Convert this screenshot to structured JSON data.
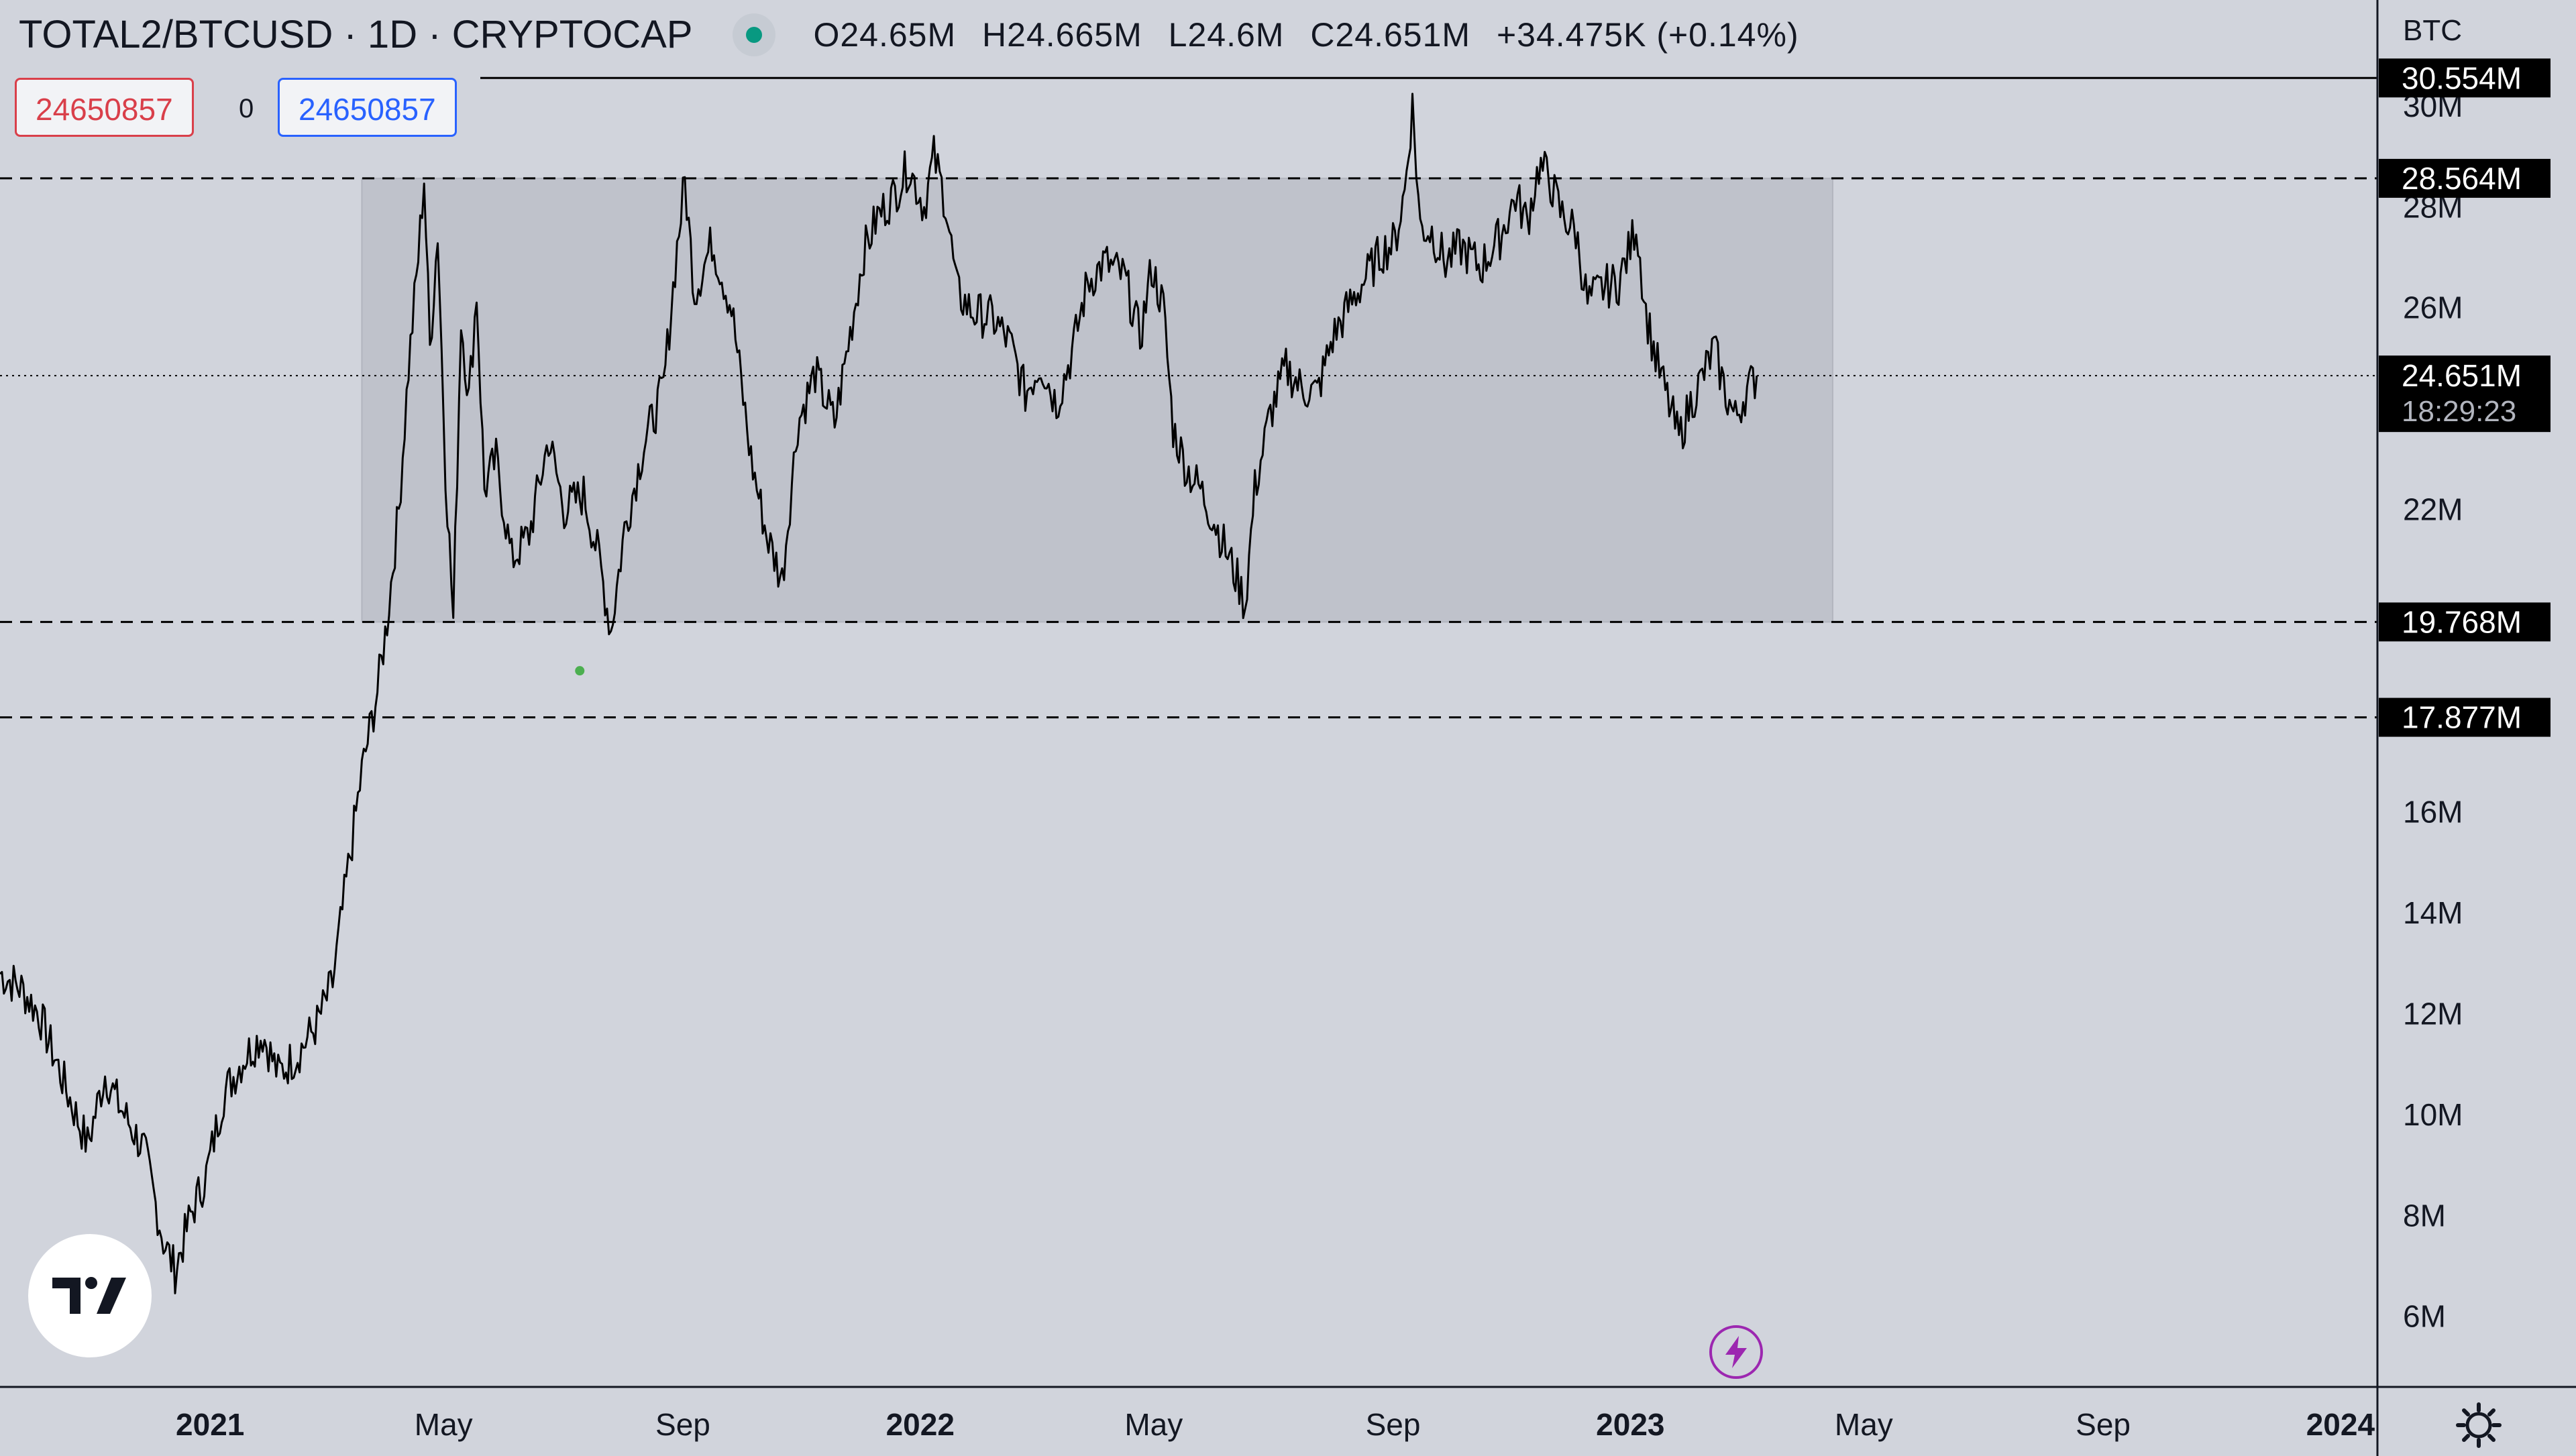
{
  "header": {
    "symbol": "TOTAL2/BTCUSD · 1D · CRYPTOCAP",
    "open": "O24.65M",
    "high": "H24.665M",
    "low": "L24.6M",
    "close": "C24.651M",
    "change": "+34.475K (+0.14%)"
  },
  "quote": {
    "sell": "24650857",
    "spread": "0",
    "buy": "24650857"
  },
  "colors": {
    "background": "#d1d4dc",
    "range_box": "#bfc2cb",
    "price_line": "#000000",
    "sell": "#d93f4a",
    "buy": "#2962ff",
    "status_dot": "#089981",
    "bolt": "#9c27b0"
  },
  "price_axis": {
    "currency": "BTC",
    "ticks": [
      "30M",
      "28M",
      "26M",
      "22M",
      "16M",
      "14M",
      "12M",
      "10M",
      "8M",
      "6M"
    ]
  },
  "price_labels": {
    "high_level": "30.554M",
    "resistance": "28.564M",
    "last_price": "24.651M",
    "countdown": "18:29:23",
    "support": "19.768M",
    "lower_support": "17.877M"
  },
  "chart_data": {
    "type": "line",
    "title": "TOTAL2/BTCUSD · 1D · CRYPTOCAP",
    "ylabel": "BTC",
    "ylim": [
      4.6,
      32.1
    ],
    "xlim": [
      "2020-09-15",
      "2024-01-20"
    ],
    "x_ticks": [
      {
        "label": "2021",
        "date": "2021-01-01",
        "bold": true
      },
      {
        "label": "May",
        "date": "2021-05-01"
      },
      {
        "label": "Sep",
        "date": "2021-09-01"
      },
      {
        "label": "2022",
        "date": "2022-01-01",
        "bold": true
      },
      {
        "label": "May",
        "date": "2022-05-01"
      },
      {
        "label": "Sep",
        "date": "2022-09-01"
      },
      {
        "label": "2023",
        "date": "2023-01-01",
        "bold": true
      },
      {
        "label": "May",
        "date": "2023-05-01"
      },
      {
        "label": "Sep",
        "date": "2023-09-01"
      },
      {
        "label": "2024",
        "date": "2024-01-01",
        "bold": true
      }
    ],
    "y_ticks": [
      30,
      28,
      26,
      22,
      16,
      14,
      12,
      10,
      8,
      6
    ],
    "horizontal_levels": [
      {
        "value": 30.554,
        "style": "solid"
      },
      {
        "value": 28.564,
        "style": "dashed"
      },
      {
        "value": 19.768,
        "style": "dashed"
      },
      {
        "value": 17.877,
        "style": "dashed"
      },
      {
        "value": 24.651,
        "style": "dotted"
      }
    ],
    "range_box": {
      "start": "2021-03-20",
      "end": "2023-04-15",
      "top": 28.564,
      "bottom": 19.768
    },
    "marker": {
      "date": "2021-07-10",
      "value": 18.8
    },
    "series": [
      {
        "name": "TOTAL2/BTC close",
        "points": [
          [
            "2020-09-15",
            12.8
          ],
          [
            "2020-09-26",
            12.5
          ],
          [
            "2020-10-05",
            12.0
          ],
          [
            "2020-10-20",
            10.4
          ],
          [
            "2020-10-30",
            9.4
          ],
          [
            "2020-11-08",
            10.8
          ],
          [
            "2020-11-15",
            10.2
          ],
          [
            "2020-11-28",
            9.3
          ],
          [
            "2020-12-08",
            7.5
          ],
          [
            "2020-12-14",
            6.9
          ],
          [
            "2020-12-22",
            8.0
          ],
          [
            "2020-12-30",
            8.8
          ],
          [
            "2021-01-08",
            10.4
          ],
          [
            "2021-01-18",
            11.1
          ],
          [
            "2021-01-28",
            11.6
          ],
          [
            "2021-02-05",
            10.8
          ],
          [
            "2021-02-15",
            11.2
          ],
          [
            "2021-02-25",
            11.8
          ],
          [
            "2021-03-05",
            12.6
          ],
          [
            "2021-03-12",
            14.6
          ],
          [
            "2021-03-20",
            16.8
          ],
          [
            "2021-03-28",
            18.4
          ],
          [
            "2021-04-02",
            19.8
          ],
          [
            "2021-04-08",
            22.0
          ],
          [
            "2021-04-13",
            24.8
          ],
          [
            "2021-04-18",
            27.0
          ],
          [
            "2021-04-21",
            28.6
          ],
          [
            "2021-04-24",
            25.2
          ],
          [
            "2021-04-28",
            27.5
          ],
          [
            "2021-05-02",
            22.8
          ],
          [
            "2021-05-06",
            19.8
          ],
          [
            "2021-05-10",
            25.8
          ],
          [
            "2021-05-14",
            24.2
          ],
          [
            "2021-05-18",
            26.3
          ],
          [
            "2021-05-22",
            22.4
          ],
          [
            "2021-05-28",
            23.0
          ],
          [
            "2021-06-05",
            21.0
          ],
          [
            "2021-06-14",
            21.5
          ],
          [
            "2021-06-24",
            23.4
          ],
          [
            "2021-07-02",
            22.0
          ],
          [
            "2021-07-12",
            22.3
          ],
          [
            "2021-07-20",
            21.0
          ],
          [
            "2021-07-26",
            19.6
          ],
          [
            "2021-08-02",
            21.6
          ],
          [
            "2021-08-12",
            23.3
          ],
          [
            "2021-08-22",
            24.4
          ],
          [
            "2021-08-29",
            27.2
          ],
          [
            "2021-09-02",
            28.5
          ],
          [
            "2021-09-07",
            26.3
          ],
          [
            "2021-09-16",
            27.3
          ],
          [
            "2021-09-26",
            26.0
          ],
          [
            "2021-10-06",
            23.0
          ],
          [
            "2021-10-14",
            21.5
          ],
          [
            "2021-10-22",
            20.6
          ],
          [
            "2021-10-30",
            23.7
          ],
          [
            "2021-11-08",
            24.7
          ],
          [
            "2021-11-18",
            23.7
          ],
          [
            "2021-11-26",
            25.5
          ],
          [
            "2021-12-03",
            27.1
          ],
          [
            "2021-12-10",
            27.8
          ],
          [
            "2021-12-18",
            28.2
          ],
          [
            "2021-12-26",
            28.8
          ],
          [
            "2022-01-03",
            28.0
          ],
          [
            "2022-01-08",
            29.0
          ],
          [
            "2022-01-14",
            28.1
          ],
          [
            "2022-01-20",
            26.3
          ],
          [
            "2022-01-28",
            25.9
          ],
          [
            "2022-02-07",
            25.8
          ],
          [
            "2022-02-16",
            25.3
          ],
          [
            "2022-02-24",
            24.3
          ],
          [
            "2022-03-04",
            24.9
          ],
          [
            "2022-03-12",
            24.1
          ],
          [
            "2022-03-20",
            25.1
          ],
          [
            "2022-03-28",
            26.5
          ],
          [
            "2022-04-06",
            26.9
          ],
          [
            "2022-04-16",
            26.6
          ],
          [
            "2022-04-24",
            25.4
          ],
          [
            "2022-04-30",
            26.8
          ],
          [
            "2022-05-06",
            26.0
          ],
          [
            "2022-05-11",
            23.6
          ],
          [
            "2022-05-18",
            22.8
          ],
          [
            "2022-05-25",
            22.4
          ],
          [
            "2022-06-02",
            21.7
          ],
          [
            "2022-06-08",
            21.1
          ],
          [
            "2022-06-14",
            20.5
          ],
          [
            "2022-06-17",
            20.1
          ],
          [
            "2022-06-22",
            22.4
          ],
          [
            "2022-06-30",
            23.9
          ],
          [
            "2022-07-08",
            24.8
          ],
          [
            "2022-07-16",
            24.4
          ],
          [
            "2022-07-24",
            24.3
          ],
          [
            "2022-08-01",
            25.4
          ],
          [
            "2022-08-09",
            26.0
          ],
          [
            "2022-08-18",
            26.6
          ],
          [
            "2022-08-26",
            27.1
          ],
          [
            "2022-09-02",
            27.3
          ],
          [
            "2022-09-07",
            28.3
          ],
          [
            "2022-09-11",
            30.0
          ],
          [
            "2022-09-15",
            27.6
          ],
          [
            "2022-09-21",
            27.5
          ],
          [
            "2022-09-28",
            26.9
          ],
          [
            "2022-10-06",
            27.2
          ],
          [
            "2022-10-16",
            26.8
          ],
          [
            "2022-10-26",
            27.4
          ],
          [
            "2022-11-03",
            28.2
          ],
          [
            "2022-11-09",
            27.7
          ],
          [
            "2022-11-15",
            28.8
          ],
          [
            "2022-11-20",
            28.6
          ],
          [
            "2022-11-26",
            27.9
          ],
          [
            "2022-12-04",
            27.5
          ],
          [
            "2022-12-10",
            26.1
          ],
          [
            "2022-12-18",
            26.4
          ],
          [
            "2022-12-26",
            26.5
          ],
          [
            "2023-01-01",
            27.2
          ],
          [
            "2023-01-04",
            27.7
          ],
          [
            "2023-01-09",
            25.9
          ],
          [
            "2023-01-14",
            25.0
          ],
          [
            "2023-01-20",
            24.2
          ],
          [
            "2023-01-26",
            23.4
          ],
          [
            "2023-02-01",
            24.1
          ],
          [
            "2023-02-08",
            24.7
          ],
          [
            "2023-02-13",
            25.2
          ],
          [
            "2023-02-19",
            24.3
          ],
          [
            "2023-02-24",
            23.8
          ],
          [
            "2023-03-01",
            24.3
          ],
          [
            "2023-03-07",
            24.65
          ]
        ]
      }
    ]
  }
}
